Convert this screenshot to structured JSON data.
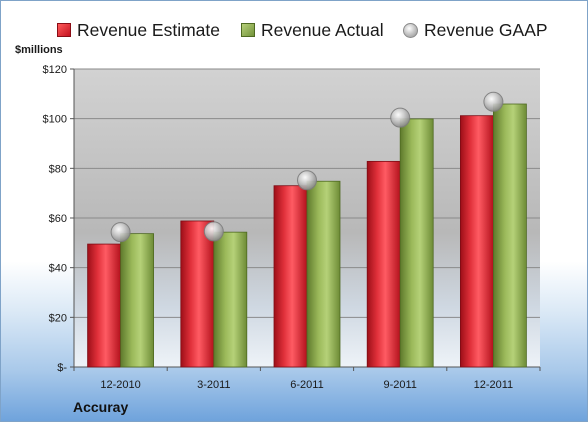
{
  "legend": {
    "estimate": "Revenue Estimate",
    "actual": "Revenue Actual",
    "gaap": "Revenue GAAP"
  },
  "company": "Accuray",
  "chart_data": {
    "type": "bar",
    "unit_label": "$millions",
    "categories": [
      "12-2010",
      "3-2011",
      "6-2011",
      "9-2011",
      "12-2011"
    ],
    "series": [
      {
        "name": "Revenue Estimate",
        "kind": "bar",
        "color": "#d21f2b",
        "values": [
          49.5,
          58.8,
          73.0,
          82.8,
          101.2
        ]
      },
      {
        "name": "Revenue Actual",
        "kind": "bar",
        "color": "#8aa84a",
        "values": [
          53.7,
          54.3,
          74.8,
          99.9,
          105.9
        ]
      },
      {
        "name": "Revenue GAAP",
        "kind": "point",
        "color": "#b0b0b0",
        "values": [
          54.3,
          54.6,
          75.2,
          100.4,
          106.8
        ]
      }
    ],
    "ylim": [
      0,
      120
    ],
    "yticks": [
      0,
      20,
      40,
      60,
      80,
      100,
      120
    ],
    "ytick_labels": [
      "$-",
      "$20",
      "$40",
      "$60",
      "$80",
      "$100",
      "$120"
    ],
    "grid": true,
    "legend_position": "top"
  }
}
